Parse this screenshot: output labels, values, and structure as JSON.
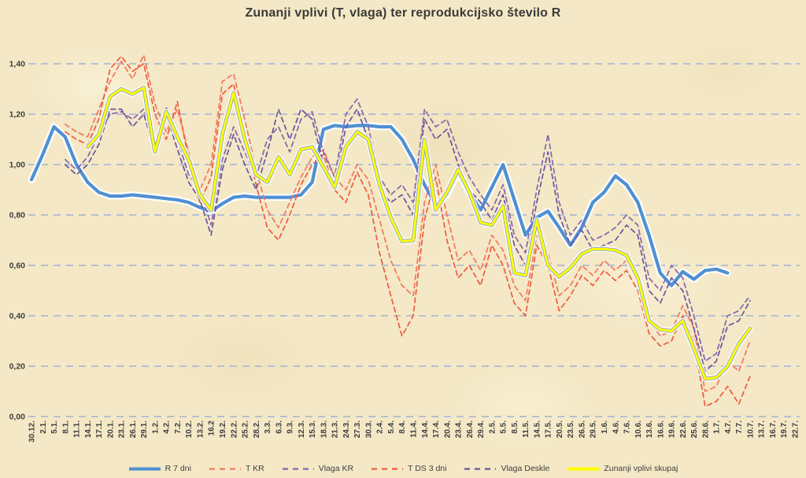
{
  "title": "Zunanji vplivi (T, vlaga) ter reprodukcijsko število R",
  "colors": {
    "background": "#f4e8c6",
    "gridline": "#b6bfd2",
    "axis_text": "#3f3f3f",
    "r7_blue": "#4e90d3",
    "t_kr_red": "#f3775e",
    "vlaga_kr_purple": "#8566ac",
    "t_ds_red": "#ee5a40",
    "vlaga_deskle_purple": "#6d539f",
    "zunanji_yellow": "#ffff00"
  },
  "chart_data": {
    "type": "line",
    "title": "Zunanji vplivi (T, vlaga) ter reprodukcijsko število R",
    "xlabel": "",
    "ylabel": "",
    "ylim": [
      0,
      1.4
    ],
    "grid": "horizontal-dashed",
    "legend_position": "bottom",
    "y_ticks": {
      "labels": [
        "0,00",
        "0,20",
        "0,40",
        "0,60",
        "0,80",
        "1,00",
        "1,20",
        "1,40"
      ],
      "values": [
        0,
        0.2,
        0.4,
        0.6,
        0.8,
        1.0,
        1.2,
        1.4
      ]
    },
    "x_tick_labels": [
      "30.12.",
      "2.1.",
      "5.1.",
      "8.1.",
      "11.1.",
      "14.1.",
      "17.1.",
      "20.1.",
      "23.1.",
      "26.1.",
      "29.1.",
      "1.2.",
      "4.2.",
      "7.2.",
      "10.2.",
      "13.2.",
      "16.2",
      "19.2.",
      "22.2.",
      "25.2.",
      "28.2.",
      "3.3.",
      "6.3.",
      "9.3.",
      "12.3.",
      "15.3.",
      "18.3.",
      "21.3.",
      "24.3.",
      "27.3.",
      "30.3.",
      "2.4.",
      "5.4.",
      "8.4.",
      "11.4.",
      "14.4.",
      "17.4.",
      "20.4.",
      "23.4.",
      "26.4.",
      "29.4.",
      "2.5.",
      "5.5.",
      "8.5.",
      "11.5.",
      "14.5.",
      "17.5.",
      "20.5.",
      "23.5.",
      "26.5.",
      "29.5.",
      "1.6.",
      "4.6.",
      "7.6.",
      "10.6.",
      "13.6.",
      "16.6.",
      "19.6.",
      "22.6.",
      "25.6.",
      "28.6.",
      "1.7.",
      "4.7.",
      "7.7.",
      "10.7.",
      "13.7.",
      "16.7.",
      "19.7.",
      "22.7."
    ],
    "series": [
      {
        "name": "R 7 dni",
        "color": "#4e90d3",
        "style": "solid",
        "width": 4.2,
        "glow": true,
        "values": [
          0.94,
          1.04,
          1.15,
          1.11,
          1.0,
          0.93,
          0.89,
          0.875,
          0.875,
          0.88,
          0.875,
          0.87,
          0.865,
          0.86,
          0.85,
          0.83,
          0.815,
          0.845,
          0.87,
          0.875,
          0.87,
          0.87,
          0.87,
          0.87,
          0.88,
          0.93,
          1.14,
          1.155,
          1.15,
          1.155,
          1.155,
          1.15,
          1.15,
          1.1,
          1.02,
          0.92,
          0.84,
          0.88,
          0.97,
          0.89,
          0.82,
          0.91,
          1.0,
          0.86,
          0.72,
          0.79,
          0.815,
          0.75,
          0.68,
          0.75,
          0.85,
          0.89,
          0.955,
          0.92,
          0.85,
          0.72,
          0.57,
          0.52,
          0.575,
          0.545,
          0.58,
          0.585,
          0.57,
          null,
          null,
          null,
          null,
          null,
          null
        ]
      },
      {
        "name": "T KR",
        "color": "#f3775e",
        "style": "dashed",
        "width": 1.7,
        "glow": false,
        "values": [
          null,
          null,
          null,
          1.16,
          1.13,
          1.11,
          1.22,
          1.33,
          1.41,
          1.34,
          1.435,
          1.24,
          1.13,
          1.22,
          1.05,
          0.9,
          1.0,
          1.33,
          1.36,
          1.18,
          0.98,
          0.82,
          0.75,
          0.85,
          0.95,
          1.03,
          1.06,
          0.95,
          0.9,
          1.0,
          0.94,
          0.78,
          0.62,
          0.52,
          0.48,
          0.85,
          1.0,
          0.8,
          0.62,
          0.66,
          0.58,
          0.72,
          0.66,
          0.52,
          0.46,
          0.72,
          0.65,
          0.48,
          0.52,
          0.6,
          0.56,
          0.62,
          0.58,
          0.62,
          0.55,
          0.38,
          0.32,
          0.34,
          0.44,
          0.35,
          0.1,
          0.12,
          0.22,
          0.18,
          0.3,
          null,
          null,
          null,
          null
        ]
      },
      {
        "name": "Vlaga KR",
        "color": "#8566ac",
        "style": "dashed",
        "width": 1.7,
        "glow": false,
        "values": [
          null,
          null,
          null,
          1.02,
          0.98,
          1.03,
          1.12,
          1.2,
          1.21,
          1.18,
          1.22,
          1.08,
          1.23,
          1.1,
          0.96,
          0.9,
          0.76,
          1.02,
          1.15,
          1.05,
          0.95,
          1.1,
          1.15,
          1.05,
          1.18,
          1.21,
          1.05,
          0.95,
          1.2,
          1.26,
          1.15,
          0.95,
          0.88,
          0.92,
          0.85,
          1.22,
          1.15,
          1.18,
          1.05,
          0.95,
          0.88,
          0.82,
          0.92,
          0.72,
          0.65,
          0.9,
          1.12,
          0.85,
          0.72,
          0.78,
          0.7,
          0.72,
          0.75,
          0.8,
          0.76,
          0.55,
          0.5,
          0.6,
          0.55,
          0.4,
          0.22,
          0.25,
          0.4,
          0.42,
          0.48,
          null,
          null,
          null,
          null
        ]
      },
      {
        "name": "T DS 3 dni",
        "color": "#ee5a40",
        "style": "dashed",
        "width": 1.7,
        "glow": false,
        "values": [
          null,
          null,
          null,
          1.13,
          1.1,
          1.08,
          1.18,
          1.38,
          1.43,
          1.37,
          1.4,
          1.2,
          1.1,
          1.25,
          1.02,
          0.85,
          0.95,
          1.28,
          1.32,
          1.12,
          0.92,
          0.75,
          0.7,
          0.8,
          0.92,
          1.0,
          1.04,
          0.9,
          0.85,
          0.97,
          0.88,
          0.65,
          0.48,
          0.32,
          0.4,
          0.78,
          0.95,
          0.7,
          0.55,
          0.6,
          0.52,
          0.68,
          0.6,
          0.45,
          0.4,
          0.68,
          0.6,
          0.42,
          0.48,
          0.56,
          0.52,
          0.58,
          0.54,
          0.58,
          0.5,
          0.33,
          0.28,
          0.3,
          0.4,
          0.3,
          0.04,
          0.06,
          0.12,
          0.05,
          0.16,
          null,
          null,
          null,
          null
        ]
      },
      {
        "name": "Vlaga Deskle",
        "color": "#6d539f",
        "style": "dashed",
        "width": 1.7,
        "glow": false,
        "values": [
          null,
          null,
          null,
          1.0,
          0.96,
          1.0,
          1.08,
          1.22,
          1.22,
          1.15,
          1.2,
          1.05,
          1.2,
          1.06,
          0.93,
          0.86,
          0.72,
          0.98,
          1.12,
          1.0,
          0.9,
          1.05,
          1.22,
          1.1,
          1.22,
          1.18,
          1.0,
          0.92,
          1.15,
          1.22,
          1.1,
          0.9,
          0.85,
          0.88,
          0.8,
          1.18,
          1.1,
          1.14,
          1.0,
          0.9,
          0.85,
          0.78,
          0.88,
          0.68,
          0.6,
          0.85,
          1.05,
          0.8,
          0.68,
          0.74,
          0.66,
          0.68,
          0.7,
          0.76,
          0.72,
          0.5,
          0.45,
          0.55,
          0.5,
          0.35,
          0.18,
          0.22,
          0.36,
          0.38,
          0.46,
          null,
          null,
          null,
          null
        ]
      },
      {
        "name": "Zunanji vplivi skupaj",
        "color": "#ffff00",
        "style": "solid",
        "width": 3,
        "glow": true,
        "outline": "#8ba3c7",
        "values": [
          null,
          null,
          null,
          null,
          null,
          1.07,
          1.12,
          1.27,
          1.3,
          1.28,
          1.305,
          1.05,
          1.21,
          1.11,
          1.02,
          0.88,
          0.82,
          1.12,
          1.285,
          1.1,
          0.96,
          0.93,
          1.03,
          0.96,
          1.06,
          1.07,
          0.99,
          0.91,
          1.07,
          1.13,
          1.1,
          0.92,
          0.79,
          0.695,
          0.7,
          1.1,
          0.82,
          0.89,
          0.98,
          0.89,
          0.77,
          0.76,
          0.835,
          0.57,
          0.56,
          0.78,
          0.6,
          0.555,
          0.59,
          0.645,
          0.665,
          0.665,
          0.66,
          0.64,
          0.55,
          0.38,
          0.345,
          0.34,
          0.38,
          0.27,
          0.15,
          0.155,
          0.2,
          0.29,
          0.35,
          null,
          null,
          null,
          null
        ]
      }
    ]
  }
}
